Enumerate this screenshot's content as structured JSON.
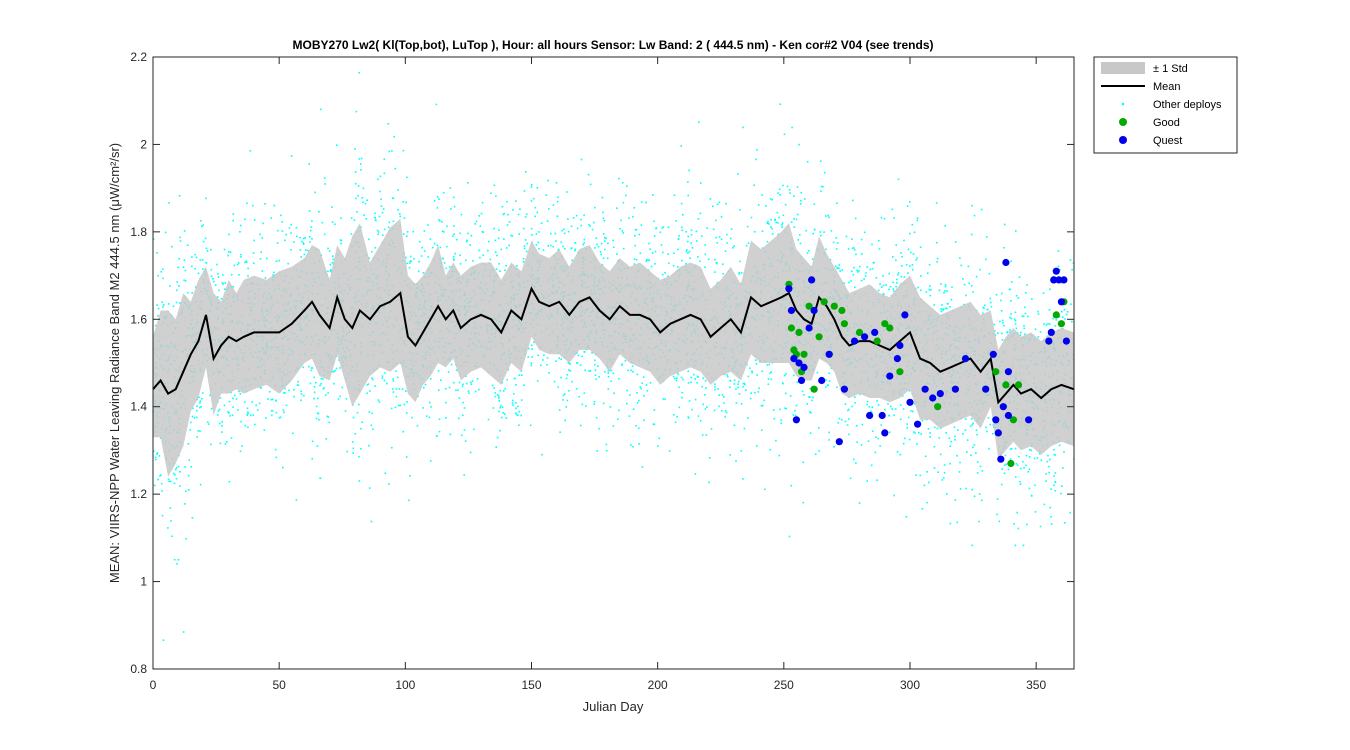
{
  "chart_data": {
    "type": "scatter",
    "title": "MOBY270   Lw2( Kl(Top,bot), LuTop ),   Hour: all hours  Sensor: Lw Band: 2 ( 444.5 nm)  - Ken cor#2 V04 (see trends)",
    "xlabel": "Julian Day",
    "ylabel": "MEAN: VIIRS-NPP Water Leaving Radiance Band M2 444.5 nm (μW/cm²/sr)",
    "xlim": [
      0,
      365
    ],
    "ylim": [
      0.8,
      2.2
    ],
    "xticks": [
      0,
      50,
      100,
      150,
      200,
      250,
      300,
      350
    ],
    "yticks": [
      0.8,
      1,
      1.2,
      1.4,
      1.6,
      1.8,
      2,
      2.2
    ],
    "xtick_labels": [
      "0",
      "50",
      "100",
      "150",
      "200",
      "250",
      "300",
      "350"
    ],
    "ytick_labels": [
      "0.8",
      "1",
      "1.2",
      "1.4",
      "1.6",
      "1.8",
      "2",
      "2.2"
    ],
    "grid": false,
    "legend_position": "outside-top-right",
    "legend": [
      "± 1 Std",
      "Mean",
      "Other deploys",
      "Good",
      "Quest"
    ],
    "colors": {
      "std_band": "#c8c8c8",
      "mean": "#000000",
      "other_deploys": "#00ffff",
      "good": "#00aa00",
      "quest": "#0000ee"
    },
    "mean": {
      "x": [
        0,
        3,
        6,
        9,
        12,
        15,
        18,
        21,
        24,
        27,
        30,
        33,
        36,
        40,
        45,
        50,
        55,
        60,
        63,
        66,
        70,
        73,
        76,
        79,
        82,
        86,
        90,
        94,
        98,
        101,
        104,
        107,
        110,
        113,
        116,
        119,
        122,
        126,
        130,
        134,
        138,
        142,
        146,
        150,
        153,
        157,
        161,
        165,
        169,
        173,
        177,
        181,
        185,
        189,
        193,
        197,
        201,
        205,
        209,
        213,
        217,
        221,
        225,
        229,
        233,
        237,
        241,
        245,
        249,
        252,
        255,
        258,
        261,
        264,
        267,
        270,
        273,
        276,
        280,
        284,
        288,
        292,
        296,
        300,
        304,
        308,
        312,
        316,
        320,
        324,
        328,
        332,
        335,
        338,
        341,
        344,
        348,
        352,
        356,
        360,
        365
      ],
      "y": [
        1.44,
        1.46,
        1.43,
        1.44,
        1.48,
        1.52,
        1.55,
        1.61,
        1.51,
        1.54,
        1.56,
        1.55,
        1.56,
        1.57,
        1.57,
        1.57,
        1.59,
        1.62,
        1.64,
        1.61,
        1.58,
        1.65,
        1.6,
        1.58,
        1.62,
        1.6,
        1.63,
        1.64,
        1.66,
        1.56,
        1.54,
        1.57,
        1.6,
        1.63,
        1.6,
        1.62,
        1.58,
        1.6,
        1.61,
        1.6,
        1.57,
        1.62,
        1.6,
        1.67,
        1.64,
        1.63,
        1.64,
        1.61,
        1.64,
        1.65,
        1.62,
        1.6,
        1.63,
        1.61,
        1.61,
        1.6,
        1.57,
        1.59,
        1.6,
        1.61,
        1.6,
        1.56,
        1.58,
        1.6,
        1.57,
        1.65,
        1.63,
        1.64,
        1.65,
        1.66,
        1.62,
        1.6,
        1.59,
        1.65,
        1.63,
        1.6,
        1.56,
        1.54,
        1.55,
        1.55,
        1.54,
        1.53,
        1.55,
        1.57,
        1.51,
        1.5,
        1.48,
        1.49,
        1.5,
        1.51,
        1.48,
        1.51,
        1.41,
        1.43,
        1.45,
        1.43,
        1.44,
        1.42,
        1.44,
        1.45,
        1.44
      ]
    },
    "std_band": {
      "x": [
        0,
        3,
        6,
        9,
        12,
        15,
        18,
        21,
        24,
        27,
        30,
        33,
        36,
        40,
        45,
        50,
        55,
        60,
        63,
        66,
        70,
        73,
        76,
        79,
        82,
        86,
        90,
        94,
        98,
        101,
        104,
        107,
        110,
        113,
        116,
        119,
        122,
        126,
        130,
        134,
        138,
        142,
        146,
        150,
        153,
        157,
        161,
        165,
        169,
        173,
        177,
        181,
        185,
        189,
        193,
        197,
        201,
        205,
        209,
        213,
        217,
        221,
        225,
        229,
        233,
        237,
        241,
        245,
        249,
        252,
        255,
        258,
        261,
        264,
        267,
        270,
        273,
        276,
        280,
        284,
        288,
        292,
        296,
        300,
        304,
        308,
        312,
        316,
        320,
        324,
        328,
        332,
        335,
        338,
        341,
        344,
        348,
        352,
        356,
        360,
        365
      ],
      "upper": [
        1.56,
        1.62,
        1.62,
        1.6,
        1.66,
        1.64,
        1.69,
        1.72,
        1.66,
        1.64,
        1.69,
        1.66,
        1.69,
        1.7,
        1.69,
        1.71,
        1.72,
        1.74,
        1.77,
        1.76,
        1.69,
        1.77,
        1.74,
        1.79,
        1.82,
        1.73,
        1.77,
        1.81,
        1.83,
        1.7,
        1.68,
        1.7,
        1.73,
        1.77,
        1.7,
        1.73,
        1.7,
        1.72,
        1.73,
        1.73,
        1.69,
        1.73,
        1.71,
        1.78,
        1.75,
        1.74,
        1.76,
        1.72,
        1.76,
        1.77,
        1.73,
        1.71,
        1.74,
        1.72,
        1.73,
        1.71,
        1.69,
        1.7,
        1.72,
        1.73,
        1.72,
        1.67,
        1.69,
        1.72,
        1.68,
        1.78,
        1.76,
        1.78,
        1.8,
        1.82,
        1.76,
        1.74,
        1.72,
        1.79,
        1.75,
        1.72,
        1.69,
        1.66,
        1.67,
        1.68,
        1.66,
        1.65,
        1.68,
        1.7,
        1.65,
        1.63,
        1.61,
        1.62,
        1.63,
        1.64,
        1.61,
        1.62,
        1.53,
        1.56,
        1.58,
        1.56,
        1.57,
        1.55,
        1.57,
        1.58,
        1.57
      ],
      "lower": [
        1.33,
        1.33,
        1.24,
        1.27,
        1.31,
        1.39,
        1.42,
        1.49,
        1.38,
        1.43,
        1.43,
        1.44,
        1.43,
        1.44,
        1.45,
        1.43,
        1.46,
        1.5,
        1.51,
        1.47,
        1.46,
        1.52,
        1.46,
        1.4,
        1.43,
        1.47,
        1.49,
        1.48,
        1.5,
        1.43,
        1.41,
        1.45,
        1.47,
        1.5,
        1.49,
        1.51,
        1.46,
        1.48,
        1.49,
        1.47,
        1.45,
        1.5,
        1.48,
        1.56,
        1.53,
        1.52,
        1.52,
        1.5,
        1.53,
        1.53,
        1.51,
        1.48,
        1.52,
        1.5,
        1.49,
        1.48,
        1.45,
        1.47,
        1.48,
        1.49,
        1.48,
        1.45,
        1.47,
        1.48,
        1.46,
        1.52,
        1.5,
        1.5,
        1.5,
        1.5,
        1.47,
        1.46,
        1.46,
        1.51,
        1.5,
        1.48,
        1.43,
        1.42,
        1.43,
        1.42,
        1.42,
        1.41,
        1.42,
        1.44,
        1.37,
        1.37,
        1.35,
        1.36,
        1.37,
        1.38,
        1.35,
        1.4,
        1.28,
        1.3,
        1.32,
        1.3,
        1.31,
        1.29,
        1.31,
        1.32,
        1.31
      ]
    },
    "good": {
      "x": [
        252,
        253,
        254,
        255,
        256,
        257,
        258,
        260,
        262,
        264,
        266,
        268,
        270,
        273,
        274,
        280,
        287,
        290,
        292,
        296,
        311,
        334,
        338,
        340,
        341,
        343,
        357,
        358,
        360,
        361
      ],
      "y": [
        1.68,
        1.58,
        1.53,
        1.52,
        1.57,
        1.48,
        1.52,
        1.63,
        1.44,
        1.56,
        1.64,
        1.52,
        1.63,
        1.62,
        1.59,
        1.57,
        1.55,
        1.59,
        1.58,
        1.48,
        1.4,
        1.48,
        1.45,
        1.27,
        1.37,
        1.45,
        1.69,
        1.61,
        1.59,
        1.64
      ]
    },
    "quest": {
      "x": [
        252,
        253,
        254,
        255,
        256,
        257,
        258,
        260,
        261,
        262,
        265,
        268,
        272,
        274,
        278,
        282,
        284,
        286,
        289,
        290,
        292,
        295,
        296,
        298,
        300,
        303,
        306,
        309,
        312,
        318,
        322,
        330,
        333,
        334,
        335,
        336,
        337,
        338,
        339,
        339,
        347,
        355,
        356,
        357,
        358,
        359,
        360,
        361,
        362
      ],
      "y": [
        1.67,
        1.62,
        1.51,
        1.37,
        1.5,
        1.46,
        1.49,
        1.58,
        1.69,
        1.62,
        1.46,
        1.52,
        1.32,
        1.44,
        1.55,
        1.56,
        1.38,
        1.57,
        1.38,
        1.34,
        1.47,
        1.51,
        1.54,
        1.61,
        1.41,
        1.36,
        1.44,
        1.42,
        1.43,
        1.44,
        1.51,
        1.44,
        1.52,
        1.37,
        1.34,
        1.28,
        1.4,
        1.73,
        1.48,
        1.38,
        1.37,
        1.55,
        1.57,
        1.69,
        1.71,
        1.69,
        1.64,
        1.69,
        1.55
      ]
    },
    "other_deploys": {
      "description_of_distribution": "",
      "count_estimate": 0
    }
  }
}
